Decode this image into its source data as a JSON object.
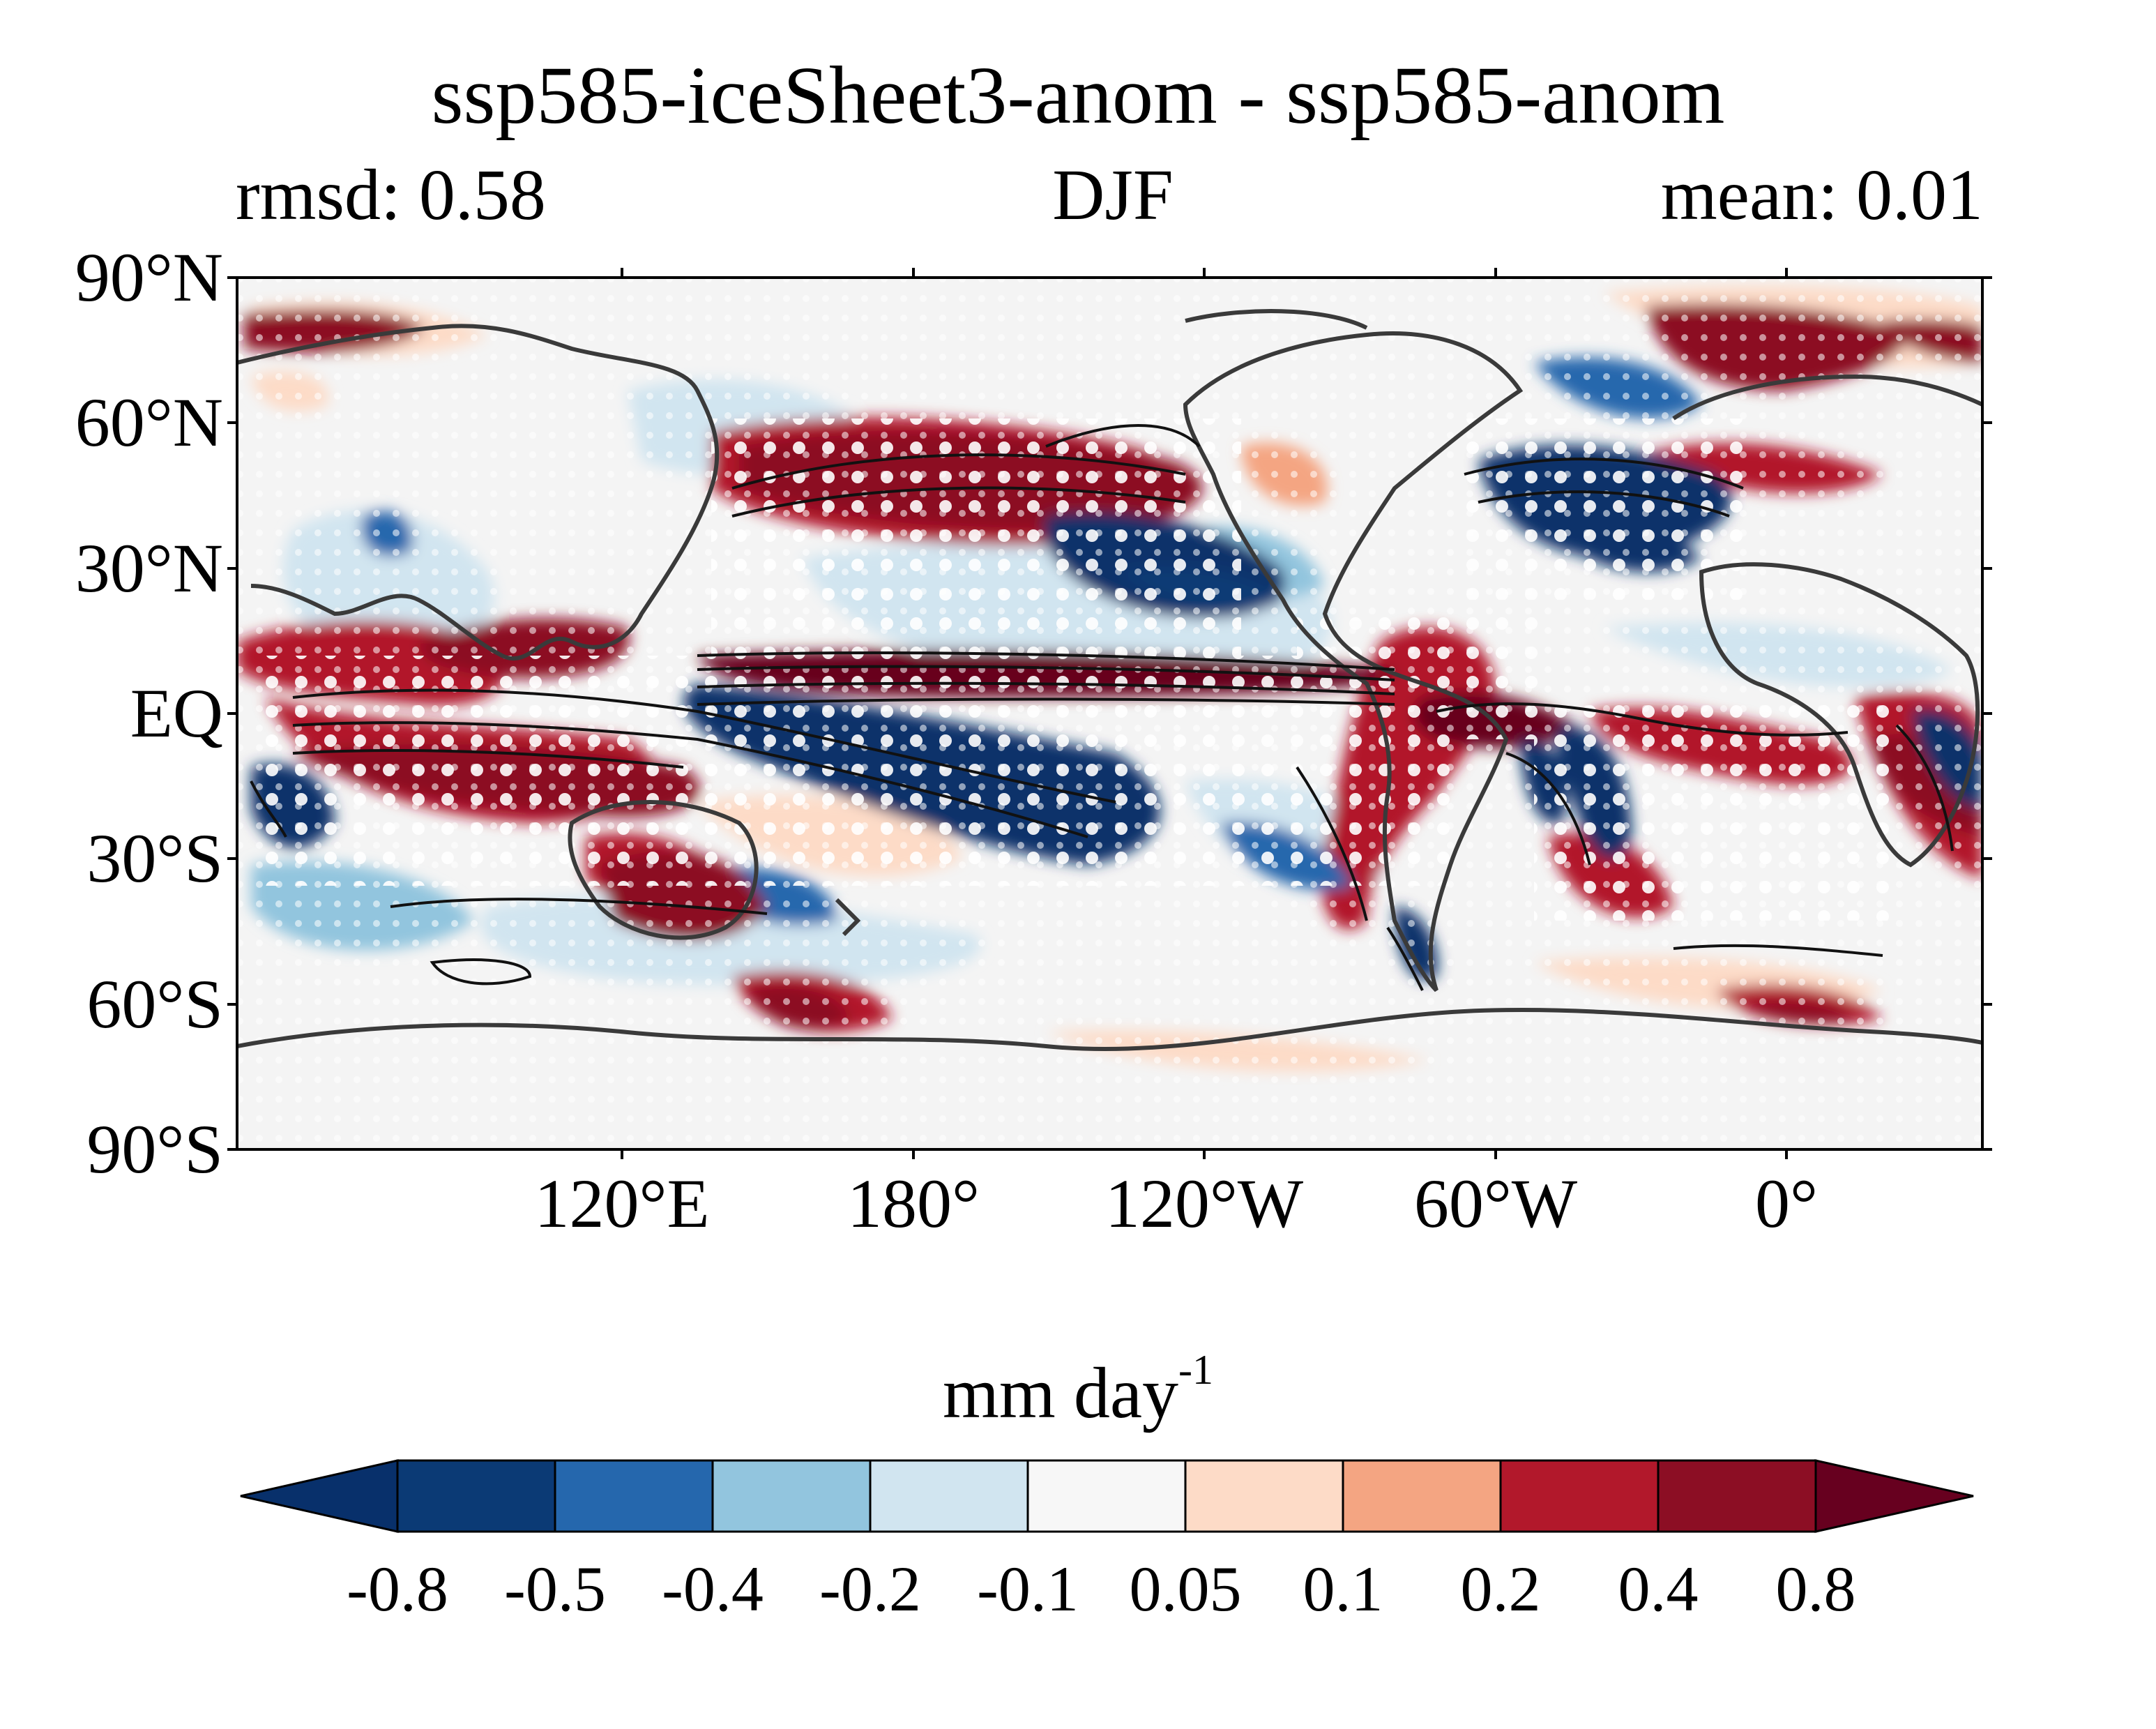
{
  "title": "ssp585-iceSheet3-anom - ssp585-anom",
  "left_label": "rmsd: 0.58",
  "center_label": "DJF",
  "right_label": "mean: 0.01",
  "lat_labels": [
    "90°N",
    "60°N",
    "30°N",
    "EQ",
    "30°S",
    "60°S",
    "90°S"
  ],
  "lon_labels": [
    "120°E",
    "180°",
    "120°W",
    "60°W",
    "0°"
  ],
  "colorbar": {
    "units": "mm day",
    "units_exponent": "-1",
    "tick_labels": [
      "-0.8",
      "-0.5",
      "-0.4",
      "-0.2",
      "-0.1",
      "0.05",
      "0.1",
      "0.2",
      "0.4",
      "0.8"
    ],
    "colors": [
      "#08306b",
      "#0b3a75",
      "#2567ad",
      "#92c5de",
      "#d1e5f0",
      "#f7f7f7",
      "#fddbc7",
      "#f4a582",
      "#b2182b",
      "#8c0e24",
      "#67001f"
    ]
  },
  "chart_data": {
    "type": "heatmap",
    "title": "ssp585-iceSheet3-anom - ssp585-anom",
    "subtitle_left": "rmsd: 0.58",
    "subtitle_center": "DJF",
    "subtitle_right": "mean: 0.01",
    "projection": "cylindrical, centered on 150°W",
    "lat_range": [
      -90,
      90
    ],
    "lon_ticks": [
      "120°E",
      "180°",
      "120°W",
      "60°W",
      "0°"
    ],
    "lat_ticks": [
      "90°N",
      "60°N",
      "30°N",
      "EQ",
      "30°S",
      "60°S",
      "90°S"
    ],
    "levels": [
      -0.8,
      -0.5,
      -0.4,
      -0.2,
      -0.1,
      0.05,
      0.1,
      0.2,
      0.4,
      0.8
    ],
    "colorbar_label": "mm day^-1",
    "overlays": [
      "coastlines",
      "black contour lines",
      "white stippling (significance)"
    ]
  }
}
